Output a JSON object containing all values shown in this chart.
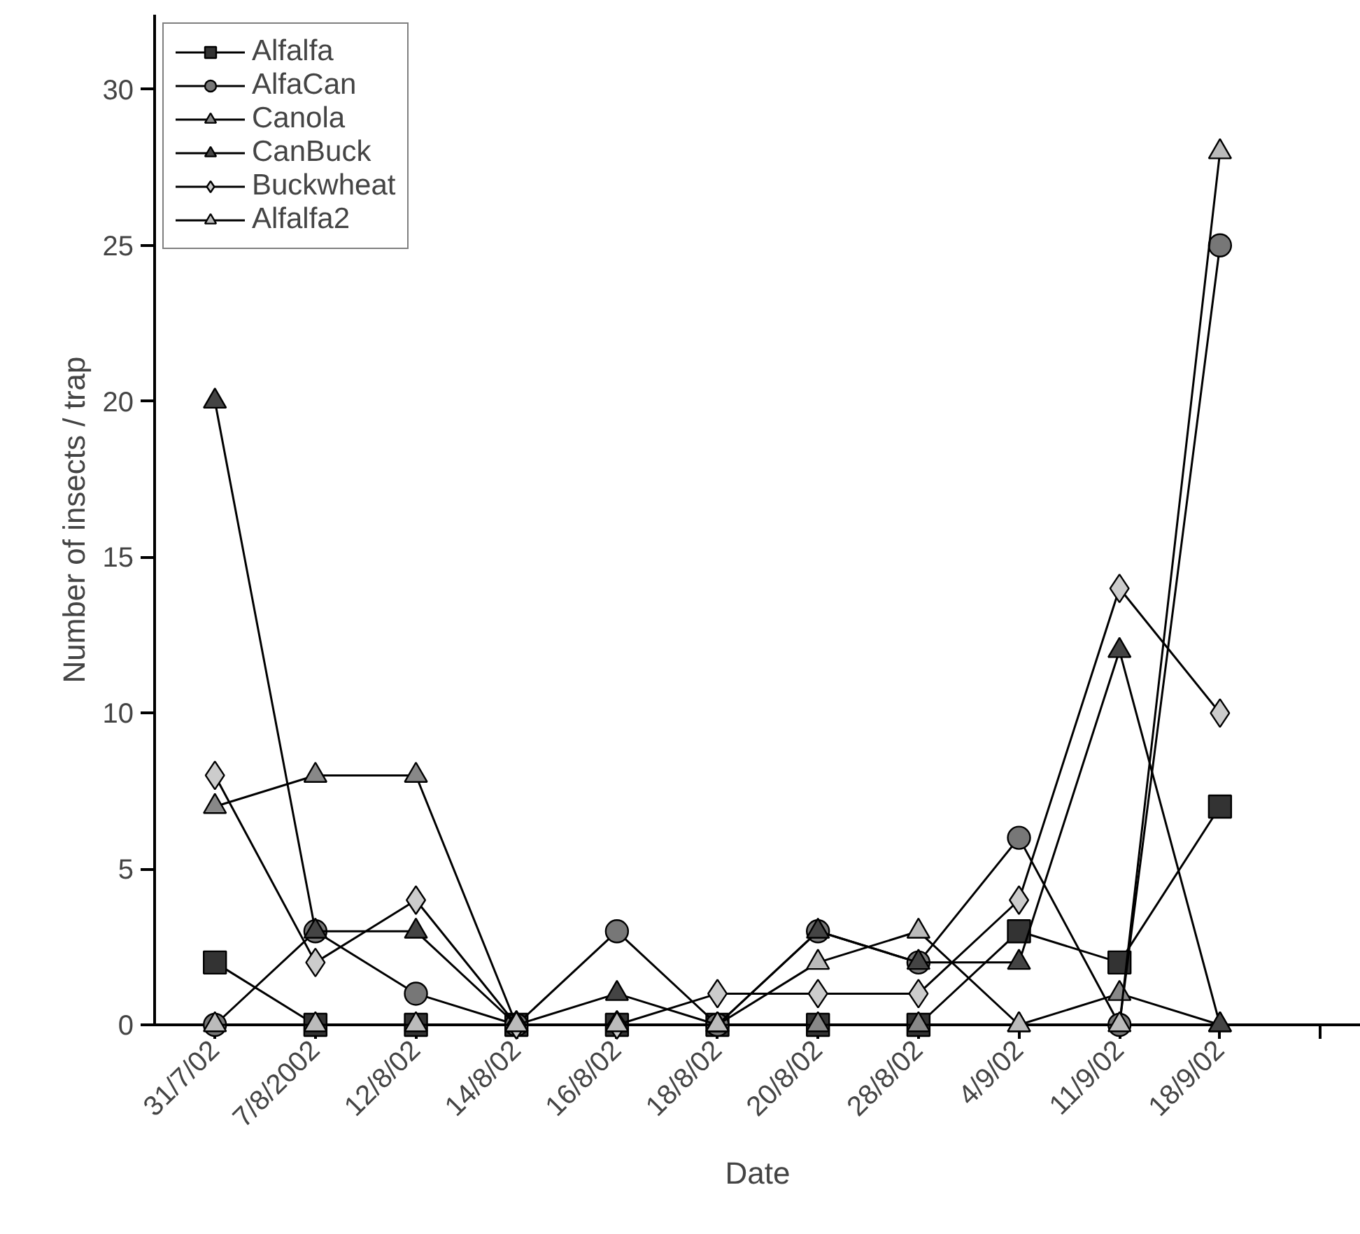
{
  "chart_data": {
    "type": "line",
    "xlabel": "Date",
    "ylabel": "Number of insects / trap",
    "categories": [
      "31/7/02",
      "7/8/2002",
      "12/8/02",
      "14/8/02",
      "16/8/02",
      "18/8/02",
      "20/8/02",
      "28/8/02",
      "4/9/02",
      "11/9/02",
      "18/9/02",
      null
    ],
    "ylim": [
      0,
      32.4
    ],
    "yticks": [
      0,
      5,
      10,
      15,
      20,
      25,
      30
    ],
    "grid": false,
    "legend": "top left",
    "series": [
      {
        "name": "Alfalfa",
        "color": "#333333",
        "marker": "square",
        "values": [
          2,
          0,
          0,
          0,
          0,
          0,
          0,
          0,
          3,
          2,
          7,
          null
        ]
      },
      {
        "name": "AlfaCan",
        "color": "#777777",
        "marker": "circle",
        "values": [
          0,
          3,
          1,
          0,
          3,
          0,
          3,
          2,
          6,
          0,
          25,
          null
        ]
      },
      {
        "name": "Canola",
        "color": "#888888",
        "marker": "triangle",
        "values": [
          7,
          8,
          8,
          0,
          0,
          0,
          0,
          0,
          0,
          1,
          0,
          null
        ]
      },
      {
        "name": "CanBuck",
        "color": "#444444",
        "marker": "triangle",
        "values": [
          20,
          3,
          3,
          0,
          1,
          0,
          3,
          2,
          2,
          12,
          0,
          null
        ]
      },
      {
        "name": "Buckwheat",
        "color": "#cccccc",
        "marker": "diamond",
        "values": [
          8,
          2,
          4,
          0,
          0,
          1,
          1,
          1,
          4,
          14,
          10,
          null
        ]
      },
      {
        "name": "Alfalfa2",
        "color": "#bbbbbb",
        "marker": "triangle",
        "values": [
          0,
          0,
          0,
          0,
          0,
          0,
          2,
          3,
          0,
          0,
          28,
          null
        ]
      }
    ]
  }
}
